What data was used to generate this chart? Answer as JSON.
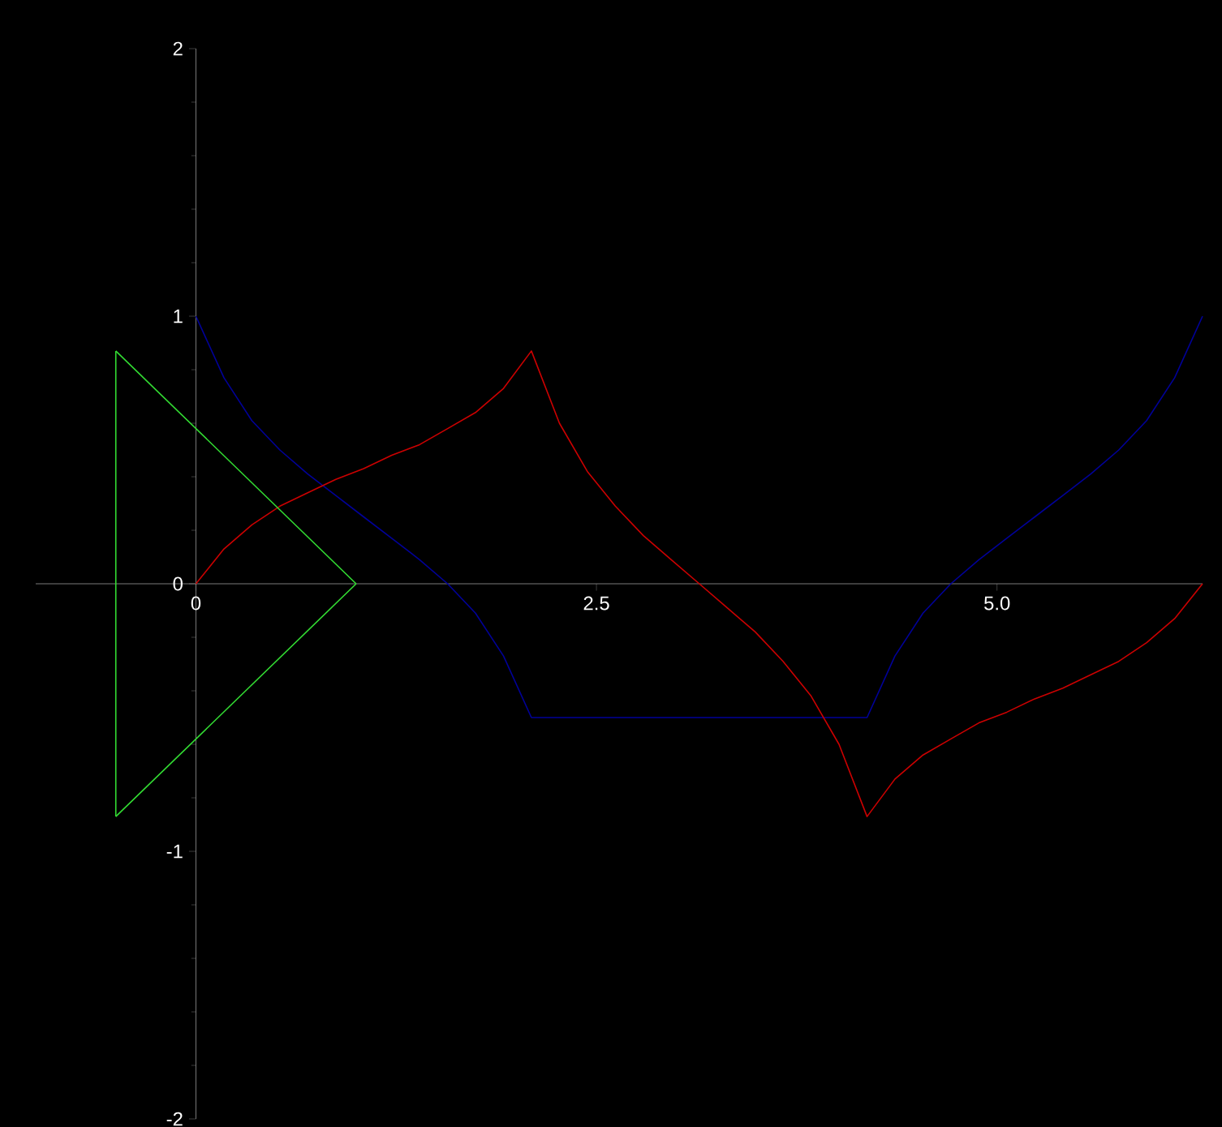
{
  "chart_data": {
    "type": "line",
    "xlim": [
      -1,
      6.283
    ],
    "ylim": [
      -2,
      2
    ],
    "xticks": [
      0,
      2.5,
      {
        "value": 5,
        "label": "5.0"
      }
    ],
    "yticks": [
      -2,
      -1,
      0,
      1,
      2
    ],
    "grid": false,
    "marker": "none",
    "line_style": "solid",
    "series": [
      {
        "color": "#000099",
        "x": [
          0,
          0.175,
          0.349,
          0.524,
          0.698,
          0.873,
          1.047,
          1.222,
          1.396,
          1.571,
          1.745,
          1.92,
          2.094,
          2.269,
          2.443,
          2.618,
          2.793,
          2.967,
          3.142,
          3.316,
          3.491,
          3.665,
          3.84,
          4.014,
          4.189,
          4.363,
          4.538,
          4.712,
          4.887,
          5.061,
          5.236,
          5.411,
          5.585,
          5.76,
          5.934,
          6.109,
          6.283
        ],
        "values": [
          1,
          0.77,
          0.61,
          0.5,
          0.41,
          0.33,
          0.25,
          0.17,
          0.09,
          0,
          -0.11,
          -0.27,
          -0.5,
          -0.5,
          -0.5,
          -0.5,
          -0.5,
          -0.5,
          -0.5,
          -0.5,
          -0.5,
          -0.5,
          -0.5,
          -0.5,
          -0.5,
          -0.27,
          -0.11,
          0,
          0.09,
          0.17,
          0.25,
          0.33,
          0.41,
          0.5,
          0.61,
          0.77,
          1
        ]
      },
      {
        "color": "#cc0000",
        "x": [
          0,
          0.175,
          0.349,
          0.524,
          0.698,
          0.873,
          1.047,
          1.222,
          1.396,
          1.571,
          1.745,
          1.92,
          2.094,
          2.269,
          2.443,
          2.618,
          2.793,
          2.967,
          3.142,
          3.316,
          3.491,
          3.665,
          3.84,
          4.014,
          4.189,
          4.363,
          4.538,
          4.712,
          4.887,
          5.061,
          5.236,
          5.411,
          5.585,
          5.76,
          5.934,
          6.109,
          6.283
        ],
        "values": [
          0,
          0.13,
          0.22,
          0.29,
          0.34,
          0.39,
          0.43,
          0.48,
          0.52,
          0.58,
          0.64,
          0.73,
          0.87,
          0.6,
          0.42,
          0.29,
          0.18,
          0.09,
          0,
          -0.09,
          -0.18,
          -0.29,
          -0.42,
          -0.6,
          -0.87,
          -0.73,
          -0.64,
          -0.58,
          -0.52,
          -0.48,
          -0.43,
          -0.39,
          -0.34,
          -0.29,
          -0.22,
          -0.13,
          0
        ]
      },
      {
        "color": "#33dd33",
        "x": [
          -0.5,
          1
        ],
        "values": [
          0.87,
          0
        ]
      },
      {
        "color": "#33dd33",
        "x": [
          -0.5,
          1
        ],
        "values": [
          -0.87,
          0
        ]
      },
      {
        "color": "#33dd33",
        "x": [
          -0.5,
          -0.5
        ],
        "values": [
          -0.87,
          0.87
        ]
      }
    ]
  }
}
